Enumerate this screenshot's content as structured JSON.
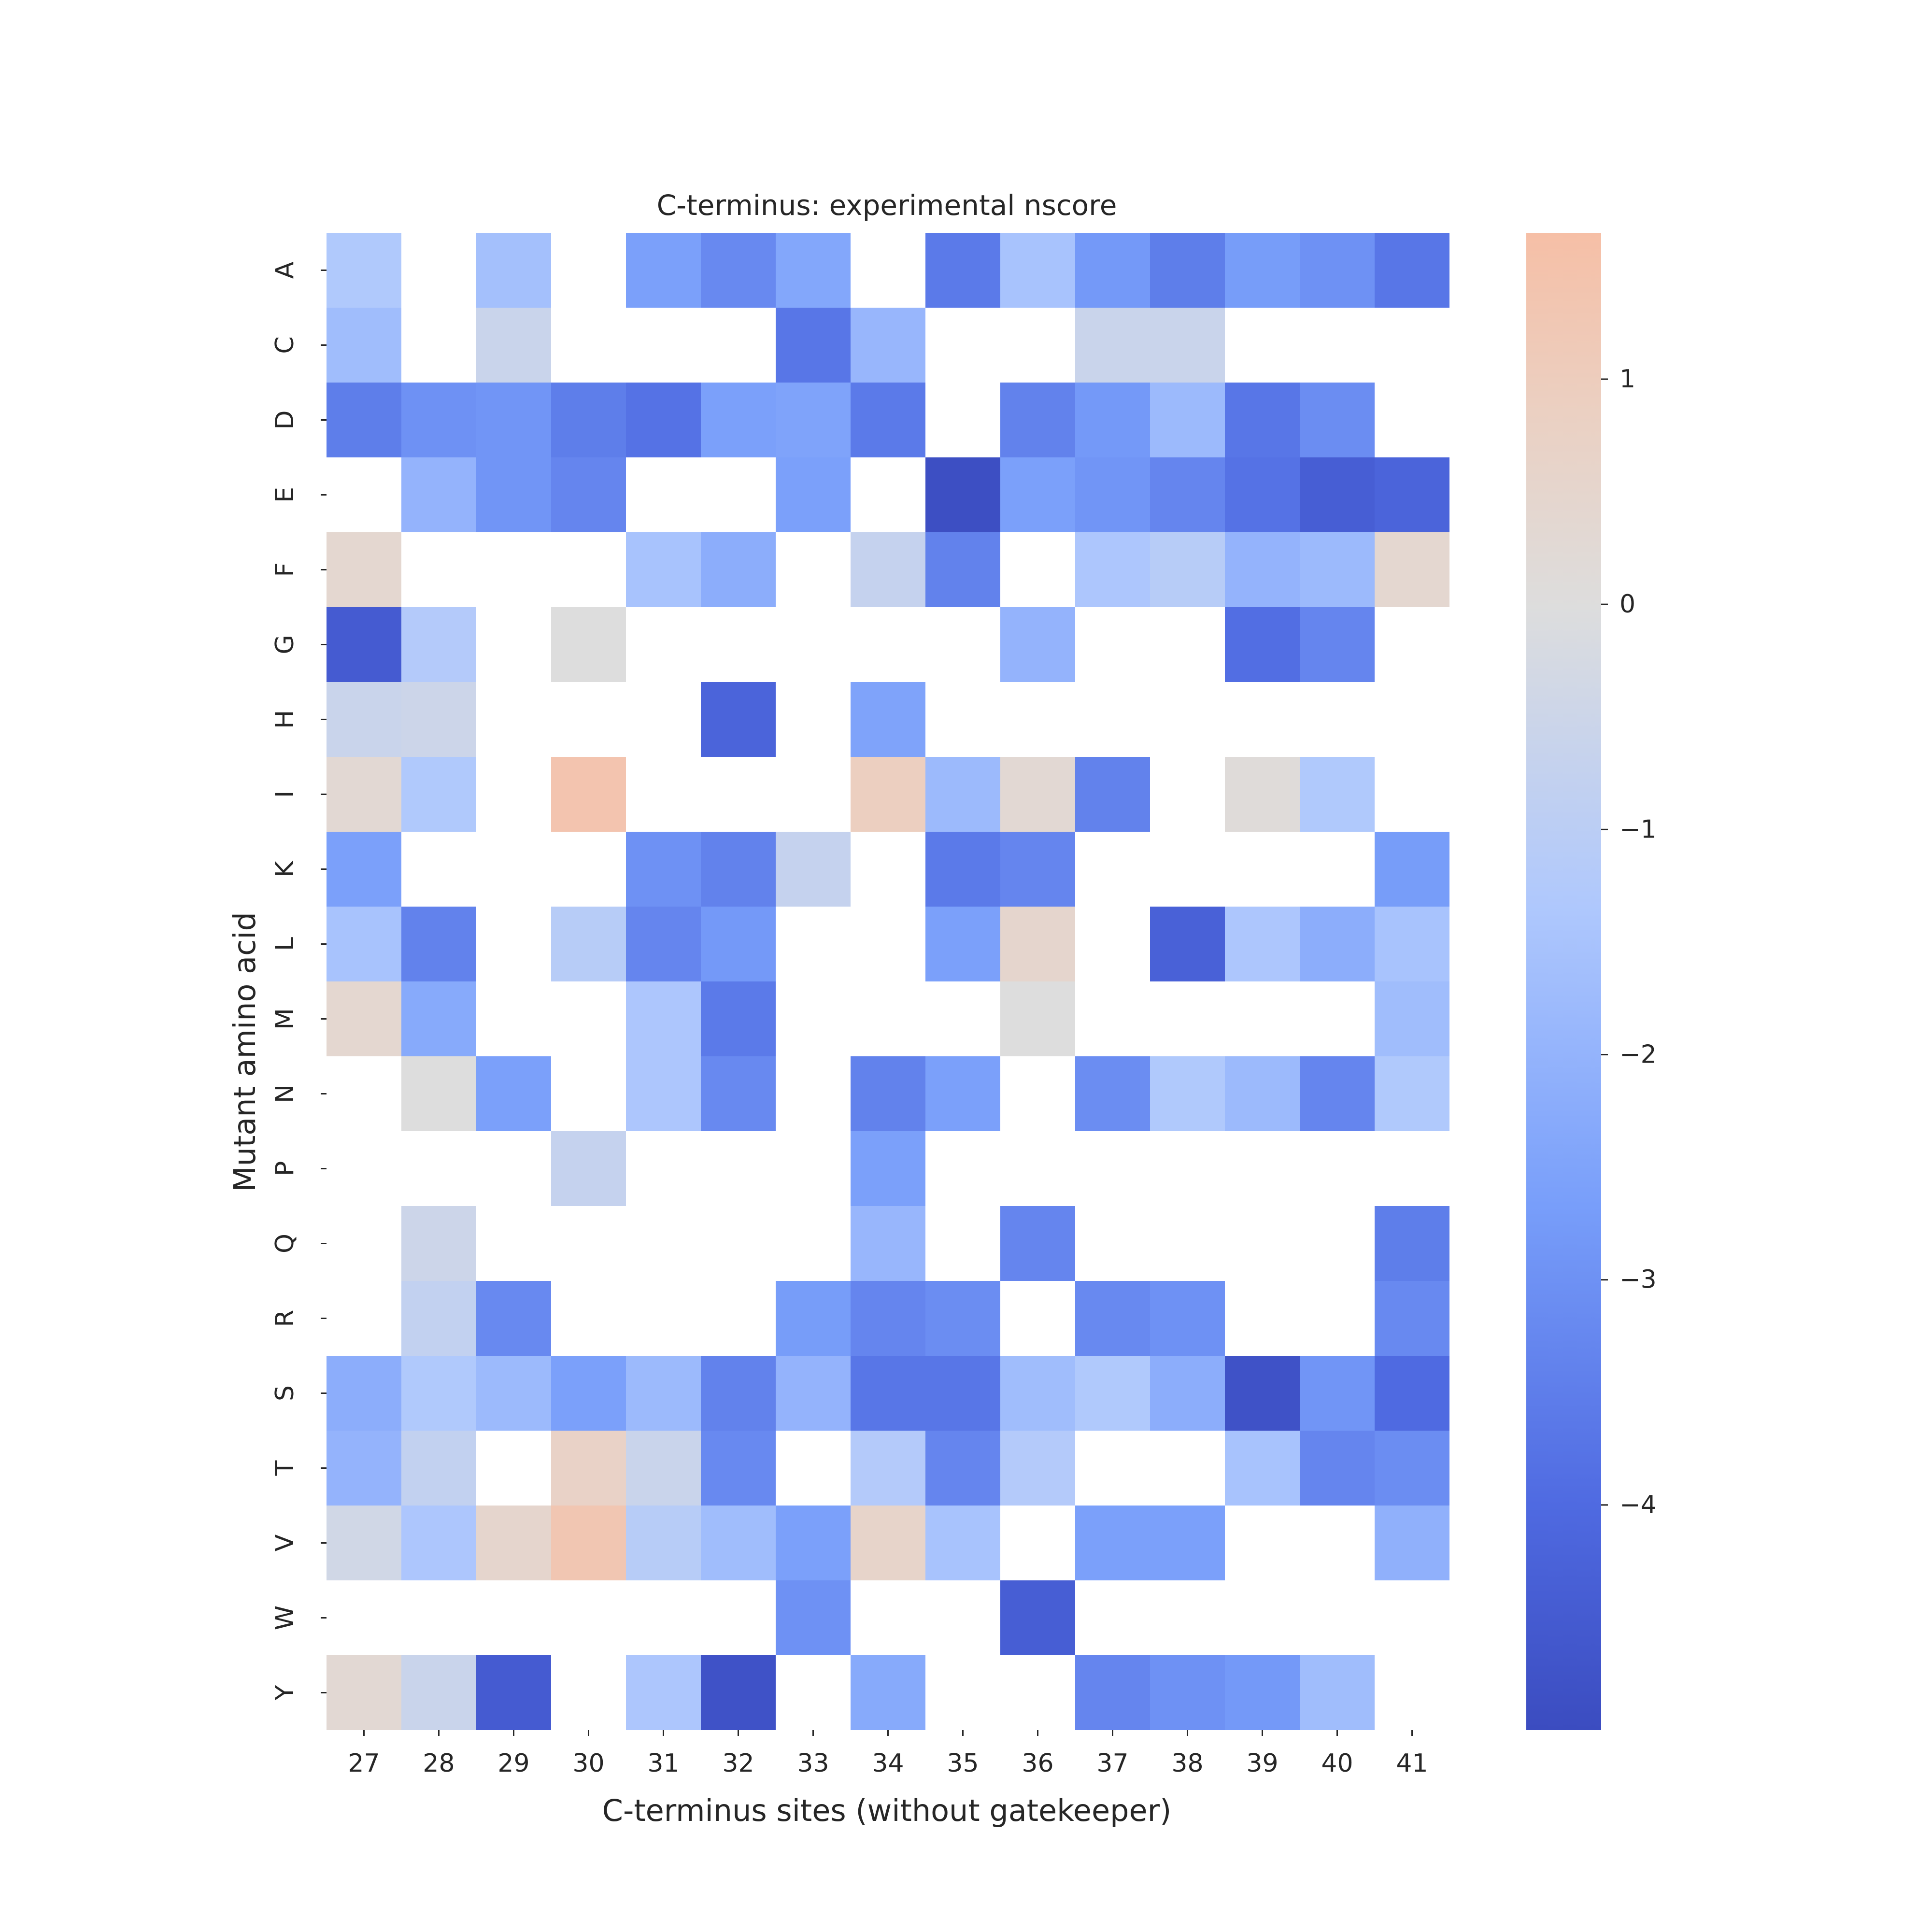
{
  "chart_data": {
    "type": "heatmap",
    "title": "C-terminus: experimental nscore",
    "xlabel": "C-terminus sites (without gatekeeper)",
    "ylabel": "Mutant amino acid",
    "x": [
      "27",
      "28",
      "29",
      "30",
      "31",
      "32",
      "33",
      "34",
      "35",
      "36",
      "37",
      "38",
      "39",
      "40",
      "41"
    ],
    "y": [
      "A",
      "C",
      "D",
      "E",
      "F",
      "G",
      "H",
      "I",
      "K",
      "L",
      "M",
      "N",
      "P",
      "Q",
      "R",
      "S",
      "T",
      "V",
      "W",
      "Y"
    ],
    "values": [
      [
        -1.3,
        null,
        -1.6,
        null,
        -2.6,
        -3.2,
        -2.4,
        null,
        -3.6,
        -1.5,
        -2.8,
        -3.5,
        -2.7,
        -3.0,
        -3.7
      ],
      [
        -1.7,
        null,
        -0.6,
        null,
        null,
        null,
        -3.7,
        -1.9,
        null,
        null,
        -0.6,
        -0.6,
        null,
        null,
        null
      ],
      [
        -3.5,
        -3.0,
        -2.9,
        -3.5,
        -3.8,
        -2.6,
        -2.5,
        -3.6,
        null,
        -3.4,
        -2.8,
        -1.8,
        -3.7,
        -3.1,
        null
      ],
      [
        null,
        -2.0,
        -2.9,
        -3.3,
        null,
        null,
        -2.6,
        null,
        -4.9,
        -2.6,
        -2.9,
        -3.3,
        -3.8,
        -4.4,
        -4.2
      ],
      [
        0.4,
        null,
        null,
        null,
        -1.5,
        -2.2,
        null,
        -0.7,
        -3.4,
        null,
        -1.4,
        -1.1,
        -2.0,
        -1.8,
        0.4
      ],
      [
        -4.5,
        -1.2,
        null,
        0.0,
        null,
        null,
        null,
        null,
        null,
        -2.0,
        null,
        null,
        -3.9,
        -3.3,
        null
      ],
      [
        -0.6,
        -0.5,
        null,
        null,
        null,
        -4.2,
        null,
        -2.5,
        null,
        null,
        null,
        null,
        null,
        null,
        null
      ],
      [
        0.3,
        -1.3,
        null,
        1.4,
        null,
        null,
        null,
        0.9,
        -1.8,
        0.3,
        -3.4,
        null,
        0.1,
        -1.3,
        null
      ],
      [
        -2.6,
        null,
        null,
        null,
        -3.0,
        -3.4,
        -0.7,
        null,
        -3.6,
        -3.3,
        null,
        null,
        null,
        null,
        -2.7
      ],
      [
        -1.5,
        -3.4,
        null,
        -1.1,
        -3.3,
        -2.8,
        null,
        null,
        -2.6,
        0.5,
        null,
        -4.3,
        -1.4,
        -2.2,
        -1.5
      ],
      [
        0.4,
        -2.3,
        null,
        null,
        -1.4,
        -3.6,
        null,
        null,
        null,
        0.0,
        null,
        null,
        null,
        null,
        -1.7
      ],
      [
        null,
        0.0,
        -2.6,
        null,
        -1.4,
        -3.2,
        null,
        -3.4,
        -2.6,
        null,
        -3.1,
        -1.3,
        -1.8,
        -3.3,
        -1.3
      ],
      [
        null,
        null,
        null,
        -0.7,
        null,
        null,
        null,
        -2.6,
        null,
        null,
        null,
        null,
        null,
        null,
        null
      ],
      [
        null,
        -0.5,
        null,
        null,
        null,
        null,
        null,
        -1.9,
        null,
        -3.3,
        null,
        null,
        null,
        null,
        -3.5
      ],
      [
        null,
        -0.8,
        -3.2,
        null,
        null,
        null,
        -2.7,
        -3.3,
        -3.1,
        null,
        -3.2,
        -3.0,
        null,
        null,
        -3.2
      ],
      [
        -2.2,
        -1.3,
        -1.8,
        -2.6,
        -1.8,
        -3.4,
        -2.0,
        -3.7,
        -3.7,
        -1.7,
        -1.3,
        -2.2,
        -4.8,
        -2.9,
        -4.0
      ],
      [
        -2.0,
        -0.8,
        null,
        0.7,
        -0.6,
        -3.2,
        null,
        -1.2,
        -3.3,
        -1.2,
        null,
        null,
        -1.5,
        -3.3,
        -3.1
      ],
      [
        -0.4,
        -1.4,
        0.5,
        1.3,
        -1.1,
        -1.7,
        -2.6,
        0.6,
        -1.5,
        null,
        -2.6,
        -2.6,
        null,
        null,
        -2.1
      ],
      [
        null,
        null,
        null,
        null,
        null,
        null,
        -3.0,
        null,
        null,
        -4.4,
        null,
        null,
        null,
        null,
        null
      ],
      [
        0.3,
        -0.6,
        -4.5,
        null,
        -1.4,
        -4.8,
        null,
        -2.3,
        null,
        null,
        -3.3,
        -3.0,
        -2.8,
        -1.7,
        null
      ]
    ],
    "colorbar": {
      "ticks": [
        1,
        0,
        -1,
        -2,
        -3,
        -4
      ],
      "tick_labels": [
        "1",
        "0",
        "−1",
        "−2",
        "−3",
        "−4"
      ],
      "vmin": -5.0,
      "vmax": 1.65,
      "colormap": "coolwarm",
      "low_color": "#3b4cc0",
      "mid_color": "#dddddd",
      "high_color": "#f6bfa6"
    },
    "grid": false,
    "missing_color": "#ffffff"
  }
}
